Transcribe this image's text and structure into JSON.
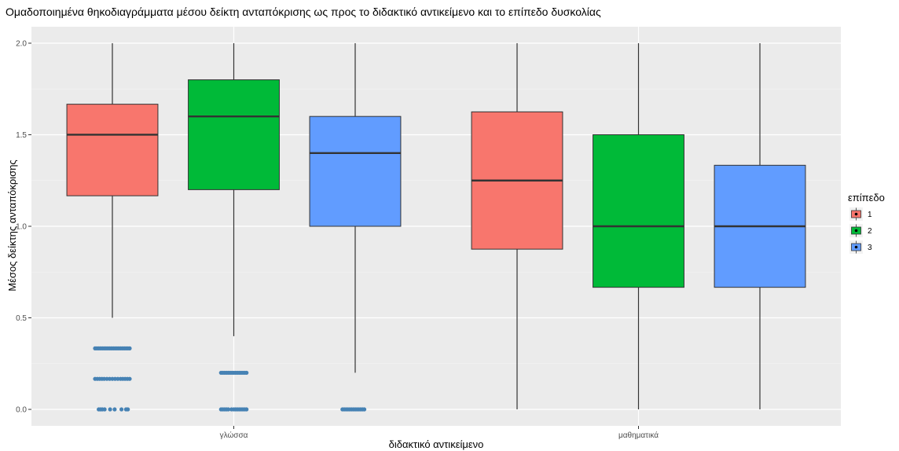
{
  "chart_data": {
    "type": "boxplot",
    "title": "Ομαδοποιημένα θηκοδιαγράμματα μέσου δείκτη ανταπόκρισης ως προς το διδακτικό αντικείμενο και το επίπεδο δυσκολίας",
    "xlabel": "διδακτικό αντικείμενο",
    "ylabel": "Μέσος δείκτης ανταπόκρισης",
    "categories": [
      "γλώσσα",
      "μαθηματικά"
    ],
    "ylim": [
      -0.09,
      2.09
    ],
    "yticks": [
      0.0,
      0.5,
      1.0,
      1.5,
      2.0
    ],
    "ytick_labels": [
      "0.0",
      "0.5",
      "1.0",
      "1.5",
      "2.0"
    ],
    "grid": true,
    "legend": {
      "title": "επίπεδο",
      "position": "right",
      "items": [
        {
          "label": "1",
          "color": "#F8766D"
        },
        {
          "label": "2",
          "color": "#00BA38"
        },
        {
          "label": "3",
          "color": "#619CFF"
        }
      ]
    },
    "colors": {
      "panel": "#EBEBEB",
      "grid_major": "#FFFFFF",
      "outlier": "#4682B4",
      "median": "#333333",
      "box_stroke": "#333333"
    },
    "series": [
      {
        "name": "1",
        "color": "#F8766D",
        "boxes": [
          {
            "category": "γλώσσα",
            "min": 0.5,
            "q1": 1.1667,
            "median": 1.5,
            "q3": 1.6667,
            "max": 2.0,
            "outliers": [
              [
                0.3333,
                -0.38
              ],
              [
                0.3333,
                -0.34
              ],
              [
                0.3333,
                -0.3
              ],
              [
                0.3333,
                -0.26
              ],
              [
                0.3333,
                -0.22
              ],
              [
                0.3333,
                -0.18
              ],
              [
                0.3333,
                -0.14
              ],
              [
                0.3333,
                -0.1
              ],
              [
                0.3333,
                -0.06
              ],
              [
                0.3333,
                -0.02
              ],
              [
                0.3333,
                0.02
              ],
              [
                0.3333,
                0.06
              ],
              [
                0.3333,
                0.1
              ],
              [
                0.3333,
                0.14
              ],
              [
                0.3333,
                0.18
              ],
              [
                0.3333,
                0.22
              ],
              [
                0.3333,
                0.26
              ],
              [
                0.3333,
                0.3
              ],
              [
                0.3333,
                0.34
              ],
              [
                0.3333,
                0.38
              ],
              [
                0.1667,
                -0.38
              ],
              [
                0.1667,
                -0.33
              ],
              [
                0.1667,
                -0.28
              ],
              [
                0.1667,
                -0.23
              ],
              [
                0.1667,
                -0.18
              ],
              [
                0.1667,
                -0.12
              ],
              [
                0.1667,
                -0.06
              ],
              [
                0.1667,
                0.0
              ],
              [
                0.1667,
                0.06
              ],
              [
                0.1667,
                0.12
              ],
              [
                0.1667,
                0.18
              ],
              [
                0.1667,
                0.23
              ],
              [
                0.1667,
                0.28
              ],
              [
                0.1667,
                0.33
              ],
              [
                0.1667,
                0.38
              ],
              [
                0.0,
                -0.3
              ],
              [
                0.0,
                -0.26
              ],
              [
                0.0,
                -0.22
              ],
              [
                0.0,
                -0.17
              ],
              [
                0.0,
                -0.05
              ],
              [
                0.0,
                0.05
              ],
              [
                0.0,
                0.2
              ],
              [
                0.0,
                0.3
              ],
              [
                0.0,
                0.34
              ]
            ]
          }
        ]
      },
      {
        "name": "2",
        "color": "#00BA38",
        "boxes": [
          {
            "category": "γλώσσα",
            "min": 0.4,
            "q1": 1.2,
            "median": 1.6,
            "q3": 1.8,
            "max": 2.0,
            "outliers": [
              [
                0.2,
                -0.28
              ],
              [
                0.2,
                -0.24
              ],
              [
                0.2,
                -0.2
              ],
              [
                0.2,
                -0.16
              ],
              [
                0.2,
                -0.12
              ],
              [
                0.2,
                -0.08
              ],
              [
                0.2,
                -0.04
              ],
              [
                0.2,
                0.0
              ],
              [
                0.2,
                0.04
              ],
              [
                0.2,
                0.08
              ],
              [
                0.2,
                0.12
              ],
              [
                0.2,
                0.16
              ],
              [
                0.2,
                0.2
              ],
              [
                0.2,
                0.24
              ],
              [
                0.2,
                0.28
              ],
              [
                0.0,
                -0.28
              ],
              [
                0.0,
                -0.24
              ],
              [
                0.0,
                -0.2
              ],
              [
                0.0,
                -0.16
              ],
              [
                0.0,
                -0.12
              ],
              [
                0.0,
                -0.05
              ],
              [
                0.0,
                0.0
              ],
              [
                0.0,
                0.04
              ],
              [
                0.0,
                0.08
              ],
              [
                0.0,
                0.12
              ],
              [
                0.0,
                0.16
              ],
              [
                0.0,
                0.2
              ],
              [
                0.0,
                0.24
              ],
              [
                0.0,
                0.28
              ]
            ]
          }
        ]
      },
      {
        "name": "3",
        "color": "#619CFF",
        "boxes": [
          {
            "category": "γλώσσα",
            "min": 0.2,
            "q1": 1.0,
            "median": 1.4,
            "q3": 1.6,
            "max": 2.0,
            "outliers": [
              [
                0.0,
                -0.28
              ],
              [
                0.0,
                -0.24
              ],
              [
                0.0,
                -0.2
              ],
              [
                0.0,
                -0.16
              ],
              [
                0.0,
                -0.12
              ],
              [
                0.0,
                -0.08
              ],
              [
                0.0,
                -0.04
              ],
              [
                0.0,
                0.0
              ],
              [
                0.0,
                0.04
              ],
              [
                0.0,
                0.08
              ],
              [
                0.0,
                0.12
              ],
              [
                0.0,
                0.16
              ],
              [
                0.0,
                0.2
              ]
            ]
          }
        ]
      }
    ],
    "boxes_extra": [
      {
        "series": "1",
        "category": "μαθηματικά",
        "min": 0.0,
        "q1": 0.875,
        "median": 1.25,
        "q3": 1.625,
        "max": 2.0,
        "outliers": []
      },
      {
        "series": "2",
        "category": "μαθηματικά",
        "min": 0.0,
        "q1": 0.6667,
        "median": 1.0,
        "q3": 1.5,
        "max": 2.0,
        "outliers": []
      },
      {
        "series": "3",
        "category": "μαθηματικά",
        "min": 0.0,
        "q1": 0.6667,
        "median": 1.0,
        "q3": 1.3333,
        "max": 2.0,
        "outliers": []
      }
    ]
  }
}
